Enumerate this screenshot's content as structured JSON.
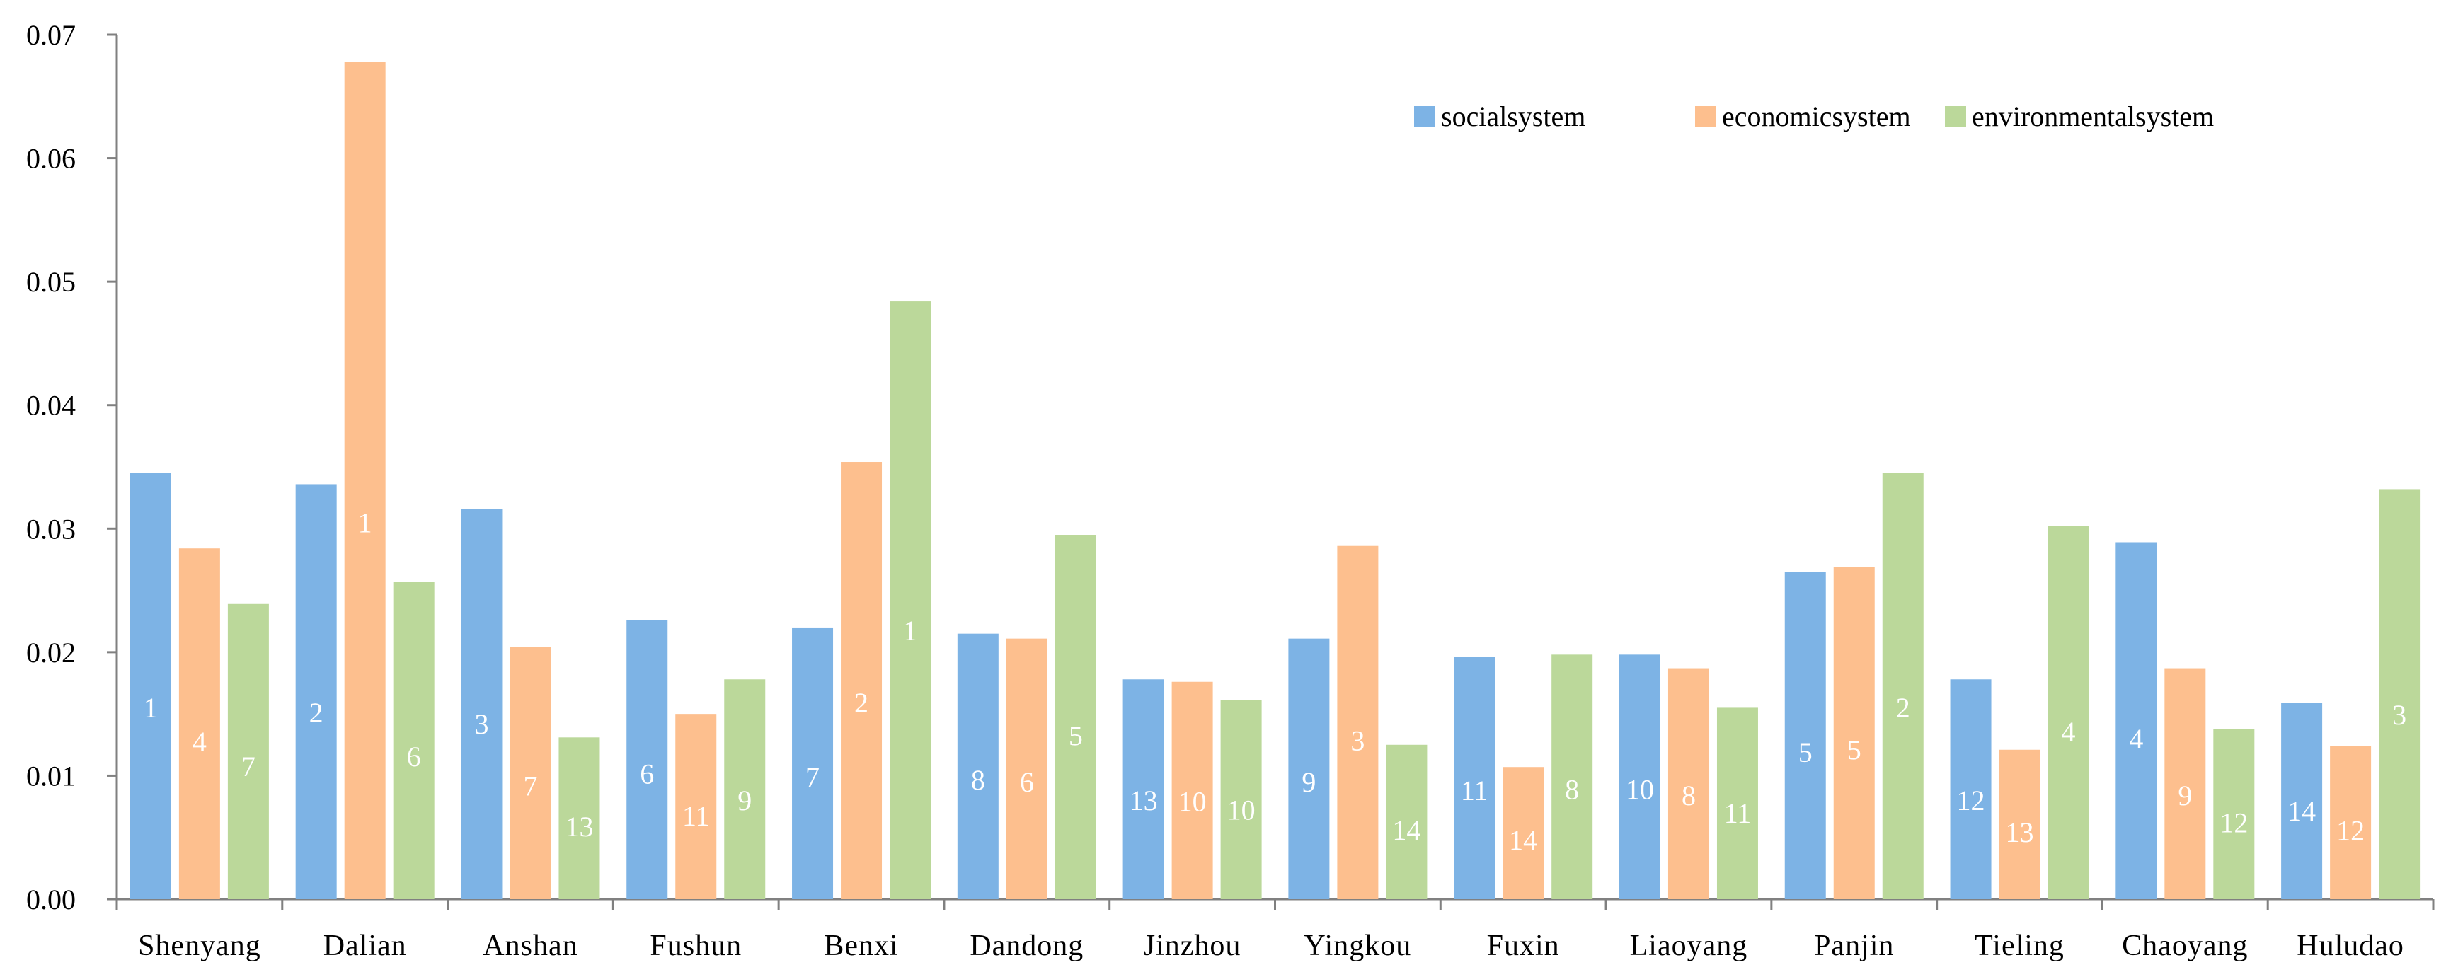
{
  "chart_data": {
    "type": "bar",
    "title": "",
    "xlabel": "",
    "ylabel": "",
    "ylim": [
      0,
      0.07
    ],
    "yticks": [
      "0.00",
      "0.01",
      "0.02",
      "0.03",
      "0.04",
      "0.05",
      "0.06",
      "0.07"
    ],
    "grid": false,
    "legend_position": "top-right",
    "categories": [
      "Shenyang",
      "Dalian",
      "Anshan",
      "Fushun",
      "Benxi",
      "Dandong",
      "Jinzhou",
      "Yingkou",
      "Fuxin",
      "Liaoyang",
      "Panjin",
      "Tieling",
      "Chaoyang",
      "Huludao"
    ],
    "series": [
      {
        "name": "socialsystem",
        "color": "#7DB3E5",
        "values": [
          0.0345,
          0.0336,
          0.0316,
          0.0226,
          0.022,
          0.0215,
          0.0178,
          0.0211,
          0.0196,
          0.0198,
          0.0265,
          0.0178,
          0.0289,
          0.0159
        ],
        "ranks": [
          "1",
          "2",
          "3",
          "6",
          "7",
          "8",
          "13",
          "9",
          "11",
          "10",
          "5",
          "12",
          "4",
          "14"
        ]
      },
      {
        "name": "economicsystem",
        "color": "#FDBF8E",
        "values": [
          0.0284,
          0.0678,
          0.0204,
          0.015,
          0.0354,
          0.0211,
          0.0176,
          0.0286,
          0.0107,
          0.0187,
          0.0269,
          0.0121,
          0.0187,
          0.0124
        ],
        "ranks": [
          "4",
          "1",
          "7",
          "11",
          "2",
          "6",
          "10",
          "3",
          "14",
          "8",
          "5",
          "13",
          "9",
          "12"
        ]
      },
      {
        "name": "environmentalsystem",
        "color": "#BBD89A",
        "values": [
          0.0239,
          0.0257,
          0.0131,
          0.0178,
          0.0484,
          0.0295,
          0.0161,
          0.0125,
          0.0198,
          0.0155,
          0.0345,
          0.0302,
          0.0138,
          0.0332
        ],
        "ranks": [
          "7",
          "6",
          "13",
          "9",
          "1",
          "5",
          "10",
          "14",
          "8",
          "11",
          "2",
          "4",
          "12",
          "3"
        ]
      }
    ]
  }
}
